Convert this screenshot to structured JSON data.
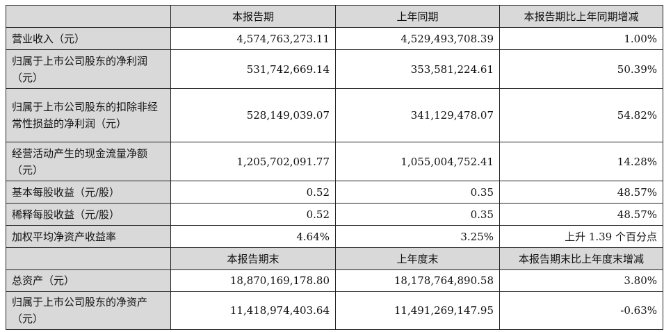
{
  "header1": [
    "",
    "本报告期",
    "上年同期",
    "本报告期比上年同期增减"
  ],
  "rows1": [
    {
      "label": "营业收入（元）",
      "current": "4,574,763,273.11",
      "prior": "4,529,493,708.39",
      "change": "1.00%"
    },
    {
      "label": "归属于上市公司股东的净利润（元）",
      "current": "531,742,669.14",
      "prior": "353,581,224.61",
      "change": "50.39%"
    },
    {
      "label": "归属于上市公司股东的扣除非经常性损益的净利润（元）",
      "current": "528,149,039.07",
      "prior": "341,129,478.07",
      "change": "54.82%"
    },
    {
      "label": "经营活动产生的现金流量净额（元）",
      "current": "1,205,702,091.77",
      "prior": "1,055,004,752.41",
      "change": "14.28%"
    },
    {
      "label": "基本每股收益（元/股）",
      "current": "0.52",
      "prior": "0.35",
      "change": "48.57%"
    },
    {
      "label": "稀释每股收益（元/股）",
      "current": "0.52",
      "prior": "0.35",
      "change": "48.57%"
    },
    {
      "label": "加权平均净资产收益率",
      "current": "4.64%",
      "prior": "3.25%",
      "change": "上升 1.39 个百分点"
    }
  ],
  "header2": [
    "",
    "本报告期末",
    "上年度末",
    "本报告期末比上年度末增减"
  ],
  "rows2": [
    {
      "label": "总资产（元）",
      "current": "18,870,169,178.80",
      "prior": "18,178,764,890.58",
      "change": "3.80%"
    },
    {
      "label": "归属于上市公司股东的净资产（元）",
      "current": "11,418,974,403.64",
      "prior": "11,491,269,147.95",
      "change": "-0.63%"
    }
  ]
}
